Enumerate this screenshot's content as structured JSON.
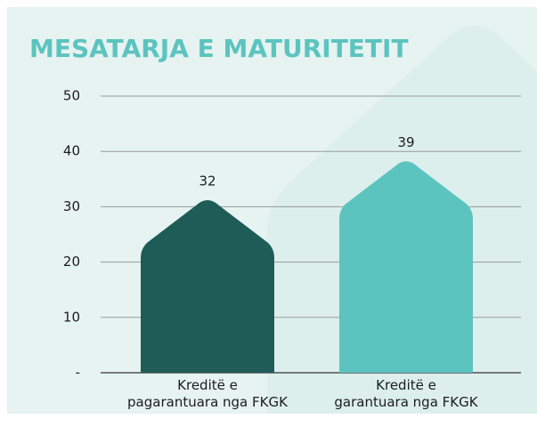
{
  "chart_data": {
    "type": "bar",
    "title": "MESATARJA E MATURITETIT",
    "categories": [
      "Kreditë e\npagarantuara nga FKGK",
      "Kreditë e\ngarantuara nga FKGK"
    ],
    "values": [
      32,
      39
    ],
    "colors": [
      "#1f5c58",
      "#5cc4bf"
    ],
    "ylim": [
      0,
      50
    ],
    "yticks": [
      {
        "value": 0,
        "label": "-"
      },
      10,
      20,
      30,
      40,
      50
    ],
    "grid": true
  }
}
